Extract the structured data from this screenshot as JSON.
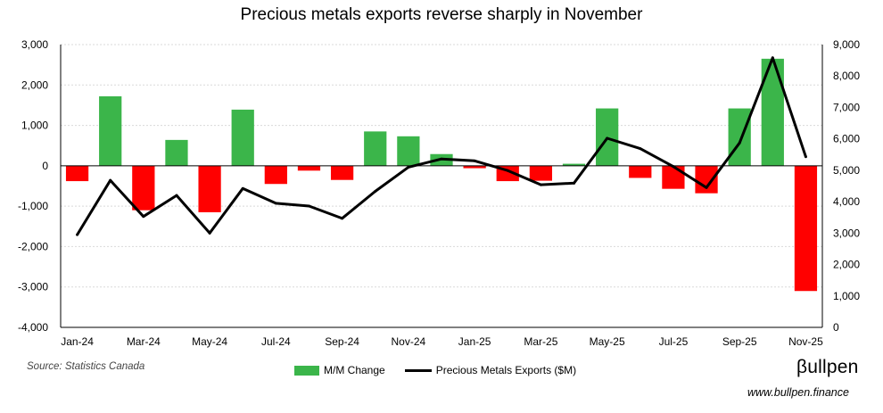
{
  "title": "Precious metals exports reverse sharply in November",
  "source": "Source: Statistics Canada",
  "brand": "βullpen",
  "website": "www.bullpen.finance",
  "colors": {
    "positive": "#3bb54a",
    "negative": "#ff0000",
    "line": "#000000",
    "grid": "#d9d9d9"
  },
  "chart_data": {
    "type": "bar+line",
    "title": "Precious metals exports reverse sharply in November",
    "categories": [
      "Jan-24",
      "Feb-24",
      "Mar-24",
      "Apr-24",
      "May-24",
      "Jun-24",
      "Jul-24",
      "Aug-24",
      "Sep-24",
      "Oct-24",
      "Nov-24",
      "Dec-24",
      "Jan-25",
      "Feb-25",
      "Mar-25",
      "Apr-25",
      "May-25",
      "Jun-25",
      "Jul-25",
      "Aug-25",
      "Sep-25",
      "Oct-25",
      "Nov-25"
    ],
    "x_tick_labels": [
      "Jan-24",
      "Mar-24",
      "May-24",
      "Jul-24",
      "Sep-24",
      "Nov-24",
      "Jan-25",
      "Mar-25",
      "May-25",
      "Jul-25",
      "Sep-25",
      "Nov-25"
    ],
    "series": [
      {
        "name": "M/M Change",
        "type": "bar",
        "axis": "left",
        "values": [
          -380,
          1720,
          -1100,
          640,
          -1150,
          1390,
          -450,
          -120,
          -350,
          850,
          730,
          290,
          -60,
          -380,
          -370,
          50,
          1420,
          -300,
          -570,
          -680,
          1420,
          2650,
          -3100
        ]
      },
      {
        "name": "Precious Metals Exports ($M)",
        "type": "line",
        "axis": "right",
        "values": [
          2950,
          4680,
          3530,
          4200,
          3000,
          4420,
          3950,
          3860,
          3470,
          4330,
          5100,
          5360,
          5300,
          4990,
          4540,
          4590,
          6020,
          5690,
          5120,
          4450,
          5870,
          8580,
          5430
        ]
      }
    ],
    "y_left": {
      "min": -4000,
      "max": 3000,
      "step": 1000,
      "tick_labels": [
        "3,000",
        "2,000",
        "1,000",
        "0",
        "-1,000",
        "-2,000",
        "-3,000",
        "-4,000"
      ]
    },
    "y_right": {
      "min": 0,
      "max": 9000,
      "step": 1000,
      "tick_labels": [
        "9,000",
        "8,000",
        "7,000",
        "6,000",
        "5,000",
        "4,000",
        "3,000",
        "2,000",
        "1,000",
        "0"
      ]
    },
    "grid": true,
    "legend_position": "bottom"
  }
}
